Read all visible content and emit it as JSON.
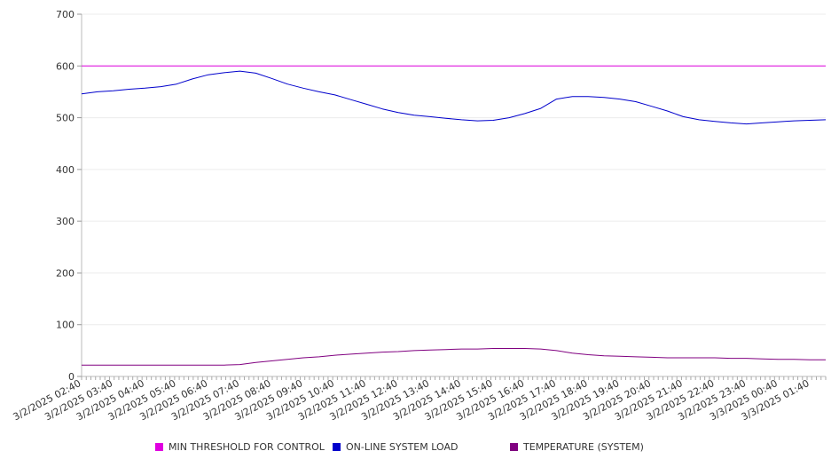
{
  "chart_data": {
    "type": "line",
    "ylim": [
      0,
      700
    ],
    "y_ticks": [
      "0",
      "100",
      "200",
      "300",
      "400",
      "500",
      "600",
      "700"
    ],
    "x_ticks": [
      "3/2/2025 02:40",
      "3/2/2025 03:40",
      "3/2/2025 04:40",
      "3/2/2025 05:40",
      "3/2/2025 06:40",
      "3/2/2025 07:40",
      "3/2/2025 08:40",
      "3/2/2025 09:40",
      "3/2/2025 10:40",
      "3/2/2025 11:40",
      "3/2/2025 12:40",
      "3/2/2025 13:40",
      "3/2/2025 14:40",
      "3/2/2025 15:40",
      "3/2/2025 16:40",
      "3/2/2025 17:40",
      "3/2/2025 18:40",
      "3/2/2025 19:40",
      "3/2/2025 20:40",
      "3/2/2025 21:40",
      "3/2/2025 22:40",
      "3/2/2025 23:40",
      "3/3/2025 00:40",
      "3/3/2025 01:40"
    ],
    "x_tick_times": [
      "2025-03-02 02:40",
      "2025-03-02 03:40",
      "2025-03-02 04:40",
      "2025-03-02 05:40",
      "2025-03-02 06:40",
      "2025-03-02 07:40",
      "2025-03-02 08:40",
      "2025-03-02 09:40",
      "2025-03-02 10:40",
      "2025-03-02 11:40",
      "2025-03-02 12:40",
      "2025-03-02 13:40",
      "2025-03-02 14:40",
      "2025-03-02 15:40",
      "2025-03-02 16:40",
      "2025-03-02 17:40",
      "2025-03-02 18:40",
      "2025-03-02 19:40",
      "2025-03-02 20:40",
      "2025-03-02 21:40",
      "2025-03-02 22:40",
      "2025-03-02 23:40",
      "2025-03-03 00:40",
      "2025-03-03 01:40"
    ],
    "x": [
      "2025-03-02 02:40",
      "2025-03-02 03:10",
      "2025-03-02 03:40",
      "2025-03-02 04:10",
      "2025-03-02 04:40",
      "2025-03-02 05:10",
      "2025-03-02 05:40",
      "2025-03-02 06:10",
      "2025-03-02 06:40",
      "2025-03-02 07:10",
      "2025-03-02 07:40",
      "2025-03-02 08:10",
      "2025-03-02 08:40",
      "2025-03-02 09:10",
      "2025-03-02 09:40",
      "2025-03-02 10:10",
      "2025-03-02 10:40",
      "2025-03-02 11:10",
      "2025-03-02 11:40",
      "2025-03-02 12:10",
      "2025-03-02 12:40",
      "2025-03-02 13:10",
      "2025-03-02 13:40",
      "2025-03-02 14:10",
      "2025-03-02 14:40",
      "2025-03-02 15:10",
      "2025-03-02 15:40",
      "2025-03-02 16:10",
      "2025-03-02 16:40",
      "2025-03-02 17:10",
      "2025-03-02 17:40",
      "2025-03-02 18:10",
      "2025-03-02 18:40",
      "2025-03-02 19:10",
      "2025-03-02 19:40",
      "2025-03-02 20:10",
      "2025-03-02 20:40",
      "2025-03-02 21:10",
      "2025-03-02 21:40",
      "2025-03-02 22:10",
      "2025-03-02 22:40",
      "2025-03-02 23:10",
      "2025-03-02 23:40",
      "2025-03-03 00:10",
      "2025-03-03 00:40",
      "2025-03-03 01:10",
      "2025-03-03 01:40",
      "2025-03-03 02:10"
    ],
    "series": [
      {
        "name": "MIN THRESHOLD FOR CONTROL",
        "color": "#e000e0",
        "values": [
          600,
          600,
          600,
          600,
          600,
          600,
          600,
          600,
          600,
          600,
          600,
          600,
          600,
          600,
          600,
          600,
          600,
          600,
          600,
          600,
          600,
          600,
          600,
          600,
          600,
          600,
          600,
          600,
          600,
          600,
          600,
          600,
          600,
          600,
          600,
          600,
          600,
          600,
          600,
          600,
          600,
          600,
          600,
          600,
          600,
          600,
          600,
          600
        ]
      },
      {
        "name": "ON-LINE SYSTEM LOAD",
        "color": "#0000cc",
        "values": [
          546,
          550,
          552,
          555,
          557,
          560,
          565,
          575,
          583,
          587,
          590,
          586,
          576,
          565,
          557,
          550,
          544,
          535,
          526,
          517,
          510,
          505,
          502,
          499,
          496,
          494,
          495,
          500,
          508,
          518,
          536,
          541,
          541,
          539,
          536,
          531,
          522,
          513,
          502,
          496,
          493,
          490,
          488,
          490,
          492,
          494,
          495,
          496
        ]
      },
      {
        "name": "TEMPERATURE (SYSTEM)",
        "color": "#800080",
        "values": [
          22,
          22,
          22,
          22,
          22,
          22,
          22,
          22,
          22,
          22,
          23,
          27,
          30,
          33,
          36,
          38,
          41,
          43,
          45,
          47,
          48,
          50,
          51,
          52,
          53,
          53,
          54,
          54,
          54,
          53,
          50,
          45,
          42,
          40,
          39,
          38,
          37,
          36,
          36,
          36,
          36,
          35,
          35,
          34,
          33,
          33,
          32,
          32
        ]
      }
    ],
    "legend_position": "bottom",
    "grid": true
  }
}
